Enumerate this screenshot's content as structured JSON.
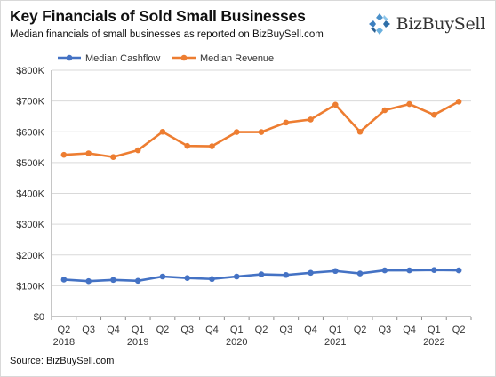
{
  "header": {
    "title": "Key Financials of Sold Small Businesses",
    "subtitle": "Median financials of small businesses as reported on BizBuySell.com",
    "logo_text": "BizBuySell"
  },
  "footer": {
    "source": "Source: BizBuySell.com"
  },
  "colors": {
    "cashflow": "#4472c4",
    "revenue": "#ed7d31",
    "grid": "#d9d9d9",
    "axis": "#8c8c8c"
  },
  "chart_data": {
    "type": "line",
    "title": "Key Financials of Sold Small Businesses",
    "subtitle": "Median financials of small businesses as reported on BizBuySell.com",
    "x": [
      "Q2 2018",
      "Q3 2018",
      "Q4 2018",
      "Q1 2019",
      "Q2 2019",
      "Q3 2019",
      "Q4 2019",
      "Q1 2020",
      "Q2 2020",
      "Q3 2020",
      "Q4 2020",
      "Q1 2021",
      "Q2 2021",
      "Q3 2021",
      "Q4 2021",
      "Q1 2022",
      "Q2 2022"
    ],
    "x_tick_quarters": [
      "Q2",
      "Q3",
      "Q4",
      "Q1",
      "Q2",
      "Q3",
      "Q4",
      "Q1",
      "Q2",
      "Q3",
      "Q4",
      "Q1",
      "Q2",
      "Q3",
      "Q4",
      "Q1",
      "Q2"
    ],
    "x_tick_years": [
      "2018",
      "",
      "",
      "2019",
      "",
      "",
      "",
      "2020",
      "",
      "",
      "",
      "2021",
      "",
      "",
      "",
      "2022",
      ""
    ],
    "y_ticks": [
      "$0",
      "$100K",
      "$200K",
      "$300K",
      "$400K",
      "$500K",
      "$600K",
      "$700K",
      "$800K"
    ],
    "ylim": [
      0,
      800000
    ],
    "grid": true,
    "legend_position": "top",
    "series": [
      {
        "name": "Median Cashflow",
        "values": [
          120000,
          115000,
          119000,
          116000,
          130000,
          125000,
          122000,
          130000,
          137000,
          135000,
          142000,
          148000,
          140000,
          150000,
          150000,
          151000,
          150000
        ]
      },
      {
        "name": "Median Revenue",
        "values": [
          525000,
          530000,
          518000,
          540000,
          600000,
          554000,
          553000,
          599000,
          599000,
          630000,
          640000,
          688000,
          600000,
          670000,
          690000,
          655000,
          698000
        ]
      }
    ]
  }
}
